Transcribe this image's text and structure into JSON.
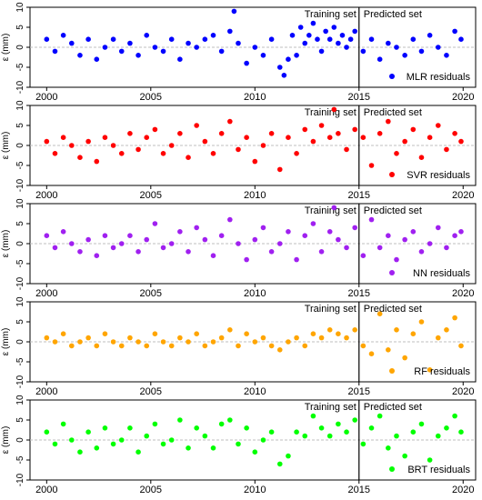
{
  "chart_data": [
    {
      "type": "scatter",
      "name": "MLR residuals",
      "ylabel": "ε (mm)",
      "color": "#0000ff",
      "xlim": [
        1999.2,
        2020.6
      ],
      "ylim": [
        -10,
        10
      ],
      "yticks": [
        -10,
        -5,
        0,
        5,
        10
      ],
      "xticks": [
        2000,
        2005,
        2010,
        2015,
        2020
      ],
      "split_x": 2015,
      "training_label": "Training set",
      "predicted_label": "Predicted set",
      "legend": "MLR residuals",
      "legend_position": "bottom-right",
      "series": [
        {
          "name": "MLR residuals",
          "x": [
            2000.0,
            2000.4,
            2000.8,
            2001.2,
            2001.6,
            2002.0,
            2002.4,
            2002.8,
            2003.2,
            2003.6,
            2004.0,
            2004.4,
            2004.8,
            2005.2,
            2005.6,
            2006.0,
            2006.4,
            2006.8,
            2007.2,
            2007.6,
            2008.0,
            2008.4,
            2008.8,
            2009.0,
            2009.2,
            2009.6,
            2010.0,
            2010.4,
            2010.8,
            2011.2,
            2011.4,
            2011.6,
            2011.8,
            2012.0,
            2012.2,
            2012.4,
            2012.6,
            2012.8,
            2013.0,
            2013.2,
            2013.4,
            2013.6,
            2013.8,
            2014.0,
            2014.2,
            2014.4,
            2014.6,
            2014.8,
            2015.2,
            2015.6,
            2016.0,
            2016.4,
            2016.8,
            2017.2,
            2017.6,
            2018.0,
            2018.4,
            2018.8,
            2019.2,
            2019.6,
            2019.9
          ],
          "y": [
            2,
            -1,
            3,
            1,
            -2,
            2,
            -3,
            0,
            2,
            -1,
            1,
            -2,
            3,
            0,
            -1,
            2,
            -3,
            1,
            0,
            2,
            3,
            -1,
            4,
            9,
            1,
            -4,
            0,
            -2,
            2,
            -5,
            -7,
            -3,
            3,
            -2,
            5,
            1,
            3,
            6,
            2,
            -1,
            4,
            2,
            5,
            1,
            3,
            0,
            2,
            4,
            -1,
            2,
            -3,
            1,
            0,
            -2,
            2,
            -1,
            3,
            0,
            -2,
            4,
            2
          ]
        }
      ]
    },
    {
      "type": "scatter",
      "name": "SVR residuals",
      "ylabel": "ε (mm)",
      "color": "#ff0000",
      "xlim": [
        1999.2,
        2020.6
      ],
      "ylim": [
        -10,
        10
      ],
      "yticks": [
        -10,
        -5,
        0,
        5,
        10
      ],
      "xticks": [
        2000,
        2005,
        2010,
        2015,
        2020
      ],
      "split_x": 2015,
      "training_label": "Training set",
      "predicted_label": "Predicted set",
      "legend": "SVR residuals",
      "legend_position": "bottom-right",
      "series": [
        {
          "name": "SVR residuals",
          "x": [
            2000.0,
            2000.4,
            2000.8,
            2001.2,
            2001.6,
            2002.0,
            2002.4,
            2002.8,
            2003.2,
            2003.6,
            2004.0,
            2004.4,
            2004.8,
            2005.2,
            2005.6,
            2006.0,
            2006.4,
            2006.8,
            2007.2,
            2007.6,
            2008.0,
            2008.4,
            2008.8,
            2009.2,
            2009.6,
            2010.0,
            2010.4,
            2010.8,
            2011.2,
            2011.6,
            2012.0,
            2012.4,
            2012.8,
            2013.2,
            2013.6,
            2013.8,
            2014.0,
            2014.4,
            2014.8,
            2015.2,
            2015.6,
            2016.0,
            2016.4,
            2016.8,
            2017.2,
            2017.6,
            2018.0,
            2018.4,
            2018.8,
            2019.2,
            2019.6,
            2019.9
          ],
          "y": [
            1,
            -2,
            2,
            0,
            -3,
            1,
            -4,
            2,
            0,
            -2,
            3,
            -1,
            2,
            4,
            -2,
            0,
            3,
            -3,
            5,
            1,
            -2,
            3,
            6,
            -1,
            2,
            -4,
            0,
            3,
            -6,
            2,
            -2,
            4,
            1,
            5,
            2,
            9,
            3,
            -1,
            4,
            2,
            -5,
            3,
            6,
            -2,
            1,
            4,
            -3,
            2,
            5,
            -1,
            3,
            1
          ]
        }
      ]
    },
    {
      "type": "scatter",
      "name": "NN residuals",
      "ylabel": "ε (mm)",
      "color": "#a020f0",
      "xlim": [
        1999.2,
        2020.6
      ],
      "ylim": [
        -10,
        10
      ],
      "yticks": [
        -10,
        -5,
        0,
        5,
        10
      ],
      "xticks": [
        2000,
        2005,
        2010,
        2015,
        2020
      ],
      "split_x": 2015,
      "training_label": "Training set",
      "predicted_label": "Predicted set",
      "legend": "NN residuals",
      "legend_position": "bottom-right",
      "series": [
        {
          "name": "NN residuals",
          "x": [
            2000.0,
            2000.4,
            2000.8,
            2001.2,
            2001.6,
            2002.0,
            2002.4,
            2002.8,
            2003.2,
            2003.6,
            2004.0,
            2004.4,
            2004.8,
            2005.2,
            2005.6,
            2006.0,
            2006.4,
            2006.8,
            2007.2,
            2007.6,
            2008.0,
            2008.4,
            2008.8,
            2009.2,
            2009.6,
            2010.0,
            2010.4,
            2010.8,
            2011.2,
            2011.6,
            2012.0,
            2012.4,
            2012.8,
            2013.2,
            2013.6,
            2013.8,
            2014.0,
            2014.4,
            2014.8,
            2015.2,
            2015.6,
            2016.0,
            2016.4,
            2016.8,
            2017.2,
            2017.6,
            2018.0,
            2018.4,
            2018.8,
            2019.2,
            2019.6,
            2019.9
          ],
          "y": [
            2,
            -1,
            3,
            0,
            -2,
            1,
            -3,
            2,
            -1,
            0,
            2,
            -2,
            1,
            5,
            -1,
            0,
            3,
            -2,
            4,
            1,
            -3,
            2,
            6,
            0,
            -4,
            1,
            4,
            -2,
            0,
            3,
            -4,
            2,
            5,
            -2,
            3,
            9,
            1,
            -1,
            4,
            -3,
            6,
            -1,
            2,
            -4,
            1,
            3,
            -2,
            0,
            4,
            -1,
            2,
            3
          ]
        }
      ]
    },
    {
      "type": "scatter",
      "name": "RF residuals",
      "ylabel": "ε (mm)",
      "color": "#ffa500",
      "xlim": [
        1999.2,
        2020.6
      ],
      "ylim": [
        -10,
        10
      ],
      "yticks": [
        -10,
        -5,
        0,
        5,
        10
      ],
      "xticks": [
        2000,
        2005,
        2010,
        2015,
        2020
      ],
      "split_x": 2015,
      "training_label": "Training set",
      "predicted_label": "Predicted set",
      "legend": "RF residuals",
      "legend_position": "bottom-right",
      "series": [
        {
          "name": "RF residuals",
          "x": [
            2000.0,
            2000.4,
            2000.8,
            2001.2,
            2001.6,
            2002.0,
            2002.4,
            2002.8,
            2003.2,
            2003.6,
            2004.0,
            2004.4,
            2004.8,
            2005.2,
            2005.6,
            2006.0,
            2006.4,
            2006.8,
            2007.2,
            2007.6,
            2008.0,
            2008.4,
            2008.8,
            2009.2,
            2009.6,
            2010.0,
            2010.4,
            2010.8,
            2011.2,
            2011.6,
            2012.0,
            2012.4,
            2012.8,
            2013.2,
            2013.6,
            2014.0,
            2014.4,
            2014.8,
            2015.2,
            2015.6,
            2016.0,
            2016.4,
            2016.8,
            2017.2,
            2017.6,
            2018.0,
            2018.4,
            2018.8,
            2019.2,
            2019.6,
            2019.9
          ],
          "y": [
            1,
            0,
            2,
            -1,
            0,
            1,
            -1,
            2,
            0,
            -1,
            1,
            0,
            -1,
            2,
            0,
            -1,
            1,
            0,
            2,
            -1,
            0,
            1,
            3,
            -1,
            2,
            0,
            1,
            -1,
            -2,
            0,
            1,
            -1,
            2,
            1,
            3,
            2,
            1,
            3,
            -1,
            -3,
            7,
            -2,
            3,
            -4,
            2,
            5,
            -7,
            1,
            3,
            6,
            -1
          ]
        }
      ]
    },
    {
      "type": "scatter",
      "name": "BRT residuals",
      "ylabel": "ε (mm)",
      "color": "#00ff00",
      "xlim": [
        1999.2,
        2020.6
      ],
      "ylim": [
        -10,
        10
      ],
      "yticks": [
        -10,
        -5,
        0,
        5,
        10
      ],
      "xticks": [
        2000,
        2005,
        2010,
        2015,
        2020
      ],
      "split_x": 2015,
      "training_label": "Training set",
      "predicted_label": "Predicted set",
      "legend": "BRT residuals",
      "legend_position": "bottom-right",
      "series": [
        {
          "name": "BRT residuals",
          "x": [
            2000.0,
            2000.4,
            2000.8,
            2001.2,
            2001.6,
            2002.0,
            2002.4,
            2002.8,
            2003.2,
            2003.6,
            2004.0,
            2004.4,
            2004.8,
            2005.2,
            2005.6,
            2006.0,
            2006.4,
            2006.8,
            2007.2,
            2007.6,
            2008.0,
            2008.4,
            2008.8,
            2009.2,
            2009.6,
            2010.0,
            2010.4,
            2010.8,
            2011.2,
            2011.6,
            2012.0,
            2012.4,
            2012.8,
            2013.2,
            2013.6,
            2014.0,
            2014.4,
            2014.8,
            2015.2,
            2015.6,
            2016.0,
            2016.4,
            2016.8,
            2017.2,
            2017.6,
            2018.0,
            2018.4,
            2018.8,
            2019.2,
            2019.6,
            2019.9
          ],
          "y": [
            2,
            -1,
            4,
            0,
            -3,
            2,
            -2,
            3,
            -1,
            0,
            3,
            -3,
            1,
            4,
            -1,
            0,
            5,
            -2,
            3,
            1,
            -2,
            4,
            5,
            -1,
            3,
            -3,
            0,
            2,
            -6,
            -4,
            2,
            1,
            6,
            3,
            1,
            4,
            2,
            5,
            -1,
            3,
            6,
            -2,
            1,
            -4,
            2,
            4,
            -5,
            1,
            3,
            6,
            2
          ]
        }
      ]
    }
  ]
}
